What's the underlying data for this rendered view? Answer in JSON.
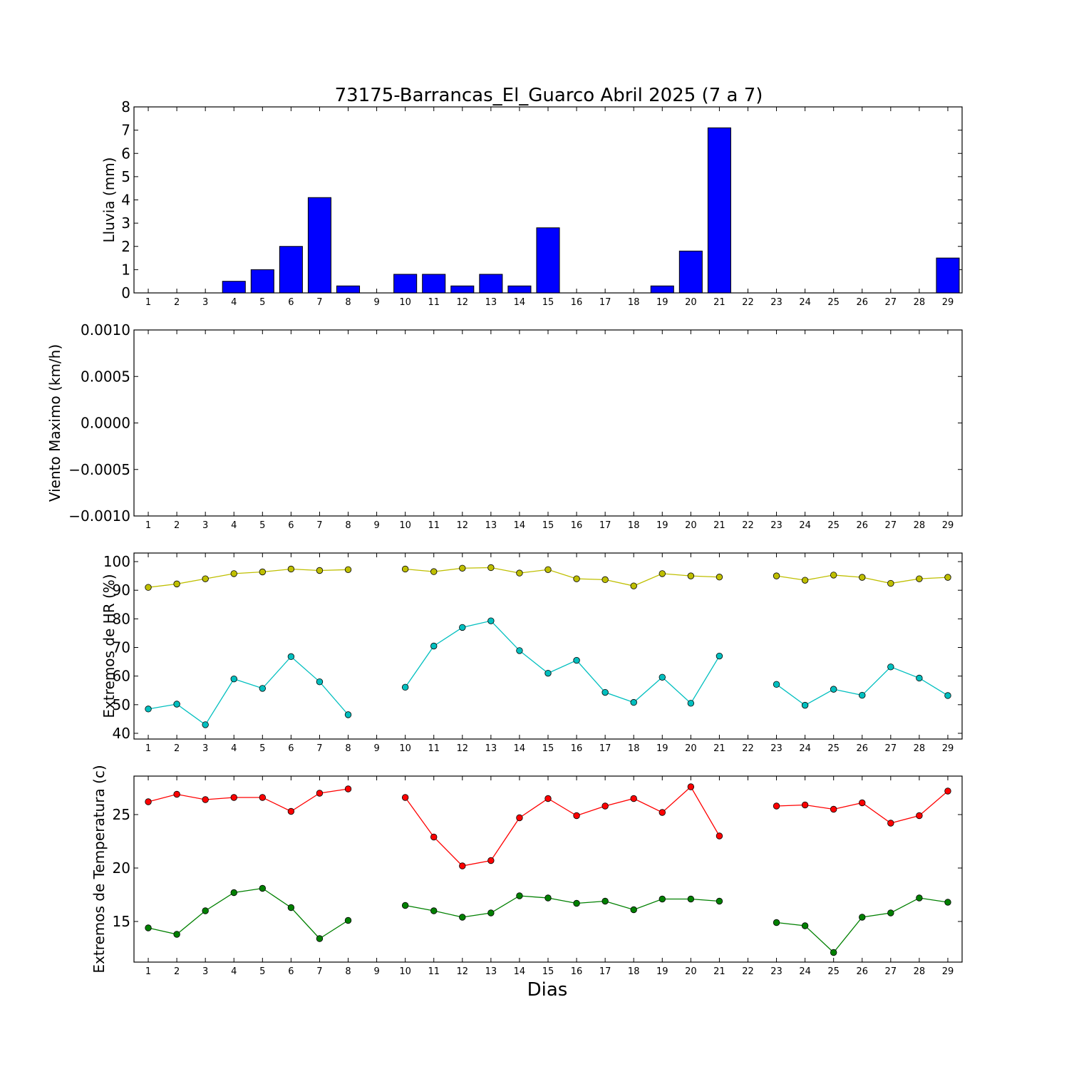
{
  "figure": {
    "title": "73175-Barrancas_El_Guarco Abril 2025  (7 a 7)",
    "xlabel": "Dias"
  },
  "chart_data": [
    {
      "type": "bar",
      "ylabel": "Lluvia (mm)",
      "categories": [
        1,
        2,
        3,
        4,
        5,
        6,
        7,
        8,
        9,
        10,
        11,
        12,
        13,
        14,
        15,
        16,
        17,
        18,
        19,
        20,
        21,
        22,
        23,
        24,
        25,
        26,
        27,
        28,
        29
      ],
      "values": [
        0,
        0,
        0,
        0.5,
        1.0,
        2.0,
        4.1,
        0.3,
        0,
        0.8,
        0.8,
        0.3,
        0.8,
        0.3,
        2.8,
        0,
        0,
        0,
        0.3,
        1.8,
        7.1,
        0,
        0,
        0,
        0,
        0,
        0,
        0,
        1.5
      ],
      "ylim": [
        0,
        8
      ],
      "yticks": [
        "0",
        "1",
        "2",
        "3",
        "4",
        "5",
        "6",
        "7",
        "8"
      ],
      "color": "#0000ff"
    },
    {
      "type": "line",
      "ylabel": "Viento Maximo (km/h)",
      "categories": [
        1,
        2,
        3,
        4,
        5,
        6,
        7,
        8,
        9,
        10,
        11,
        12,
        13,
        14,
        15,
        16,
        17,
        18,
        19,
        20,
        21,
        22,
        23,
        24,
        25,
        26,
        27,
        28,
        29
      ],
      "series": [],
      "ylim": [
        -0.001,
        0.001
      ],
      "yticks": [
        "−0.0010",
        "−0.0005",
        "0.0000",
        "0.0005",
        "0.0010"
      ]
    },
    {
      "type": "line",
      "ylabel": "Extremos de HR (%)",
      "categories": [
        1,
        2,
        3,
        4,
        5,
        6,
        7,
        8,
        9,
        10,
        11,
        12,
        13,
        14,
        15,
        16,
        17,
        18,
        19,
        20,
        21,
        22,
        23,
        24,
        25,
        26,
        27,
        28,
        29
      ],
      "ylim": [
        38,
        103
      ],
      "yticks": [
        "40",
        "50",
        "60",
        "70",
        "80",
        "90",
        "100"
      ],
      "series": [
        {
          "color": "#bfbf00",
          "values": [
            91,
            92.2,
            94,
            95.8,
            96.4,
            97.4,
            96.9,
            97.2,
            null,
            97.4,
            96.5,
            97.7,
            97.9,
            96,
            97.2,
            94,
            93.7,
            91.5,
            95.8,
            95,
            94.6,
            null,
            95,
            93.5,
            95.3,
            94.5,
            92.4,
            94,
            94.5
          ]
        },
        {
          "color": "#00bfbf",
          "values": [
            48.5,
            50.2,
            43,
            59,
            55.7,
            66.8,
            58,
            46.5,
            null,
            56.1,
            70.5,
            77,
            79.3,
            68.9,
            61,
            65.5,
            54.3,
            50.8,
            59.6,
            50.5,
            67,
            null,
            57.1,
            49.8,
            55.4,
            53.3,
            63.2,
            59.3,
            53.2
          ]
        }
      ]
    },
    {
      "type": "line",
      "ylabel": "Extremos de Temperatura (c)",
      "categories": [
        1,
        2,
        3,
        4,
        5,
        6,
        7,
        8,
        9,
        10,
        11,
        12,
        13,
        14,
        15,
        16,
        17,
        18,
        19,
        20,
        21,
        22,
        23,
        24,
        25,
        26,
        27,
        28,
        29
      ],
      "ylim": [
        11.2,
        28.6
      ],
      "yticks": [
        "15",
        "20",
        "25"
      ],
      "series": [
        {
          "color": "#ff0000",
          "values": [
            26.2,
            26.9,
            26.4,
            26.6,
            26.6,
            25.3,
            27,
            27.4,
            null,
            26.6,
            22.9,
            20.2,
            20.7,
            24.7,
            26.5,
            24.9,
            25.8,
            26.5,
            25.2,
            27.6,
            23,
            null,
            25.8,
            25.9,
            25.5,
            26.1,
            24.2,
            24.9,
            27.2
          ]
        },
        {
          "color": "#008000",
          "values": [
            14.4,
            13.8,
            16,
            17.7,
            18.1,
            16.3,
            13.4,
            15.1,
            null,
            16.5,
            16,
            15.4,
            15.8,
            17.4,
            17.2,
            16.7,
            16.9,
            16.1,
            17.1,
            17.1,
            16.9,
            null,
            14.9,
            14.6,
            12.1,
            15.4,
            15.8,
            17.2,
            16.8
          ]
        }
      ]
    }
  ]
}
